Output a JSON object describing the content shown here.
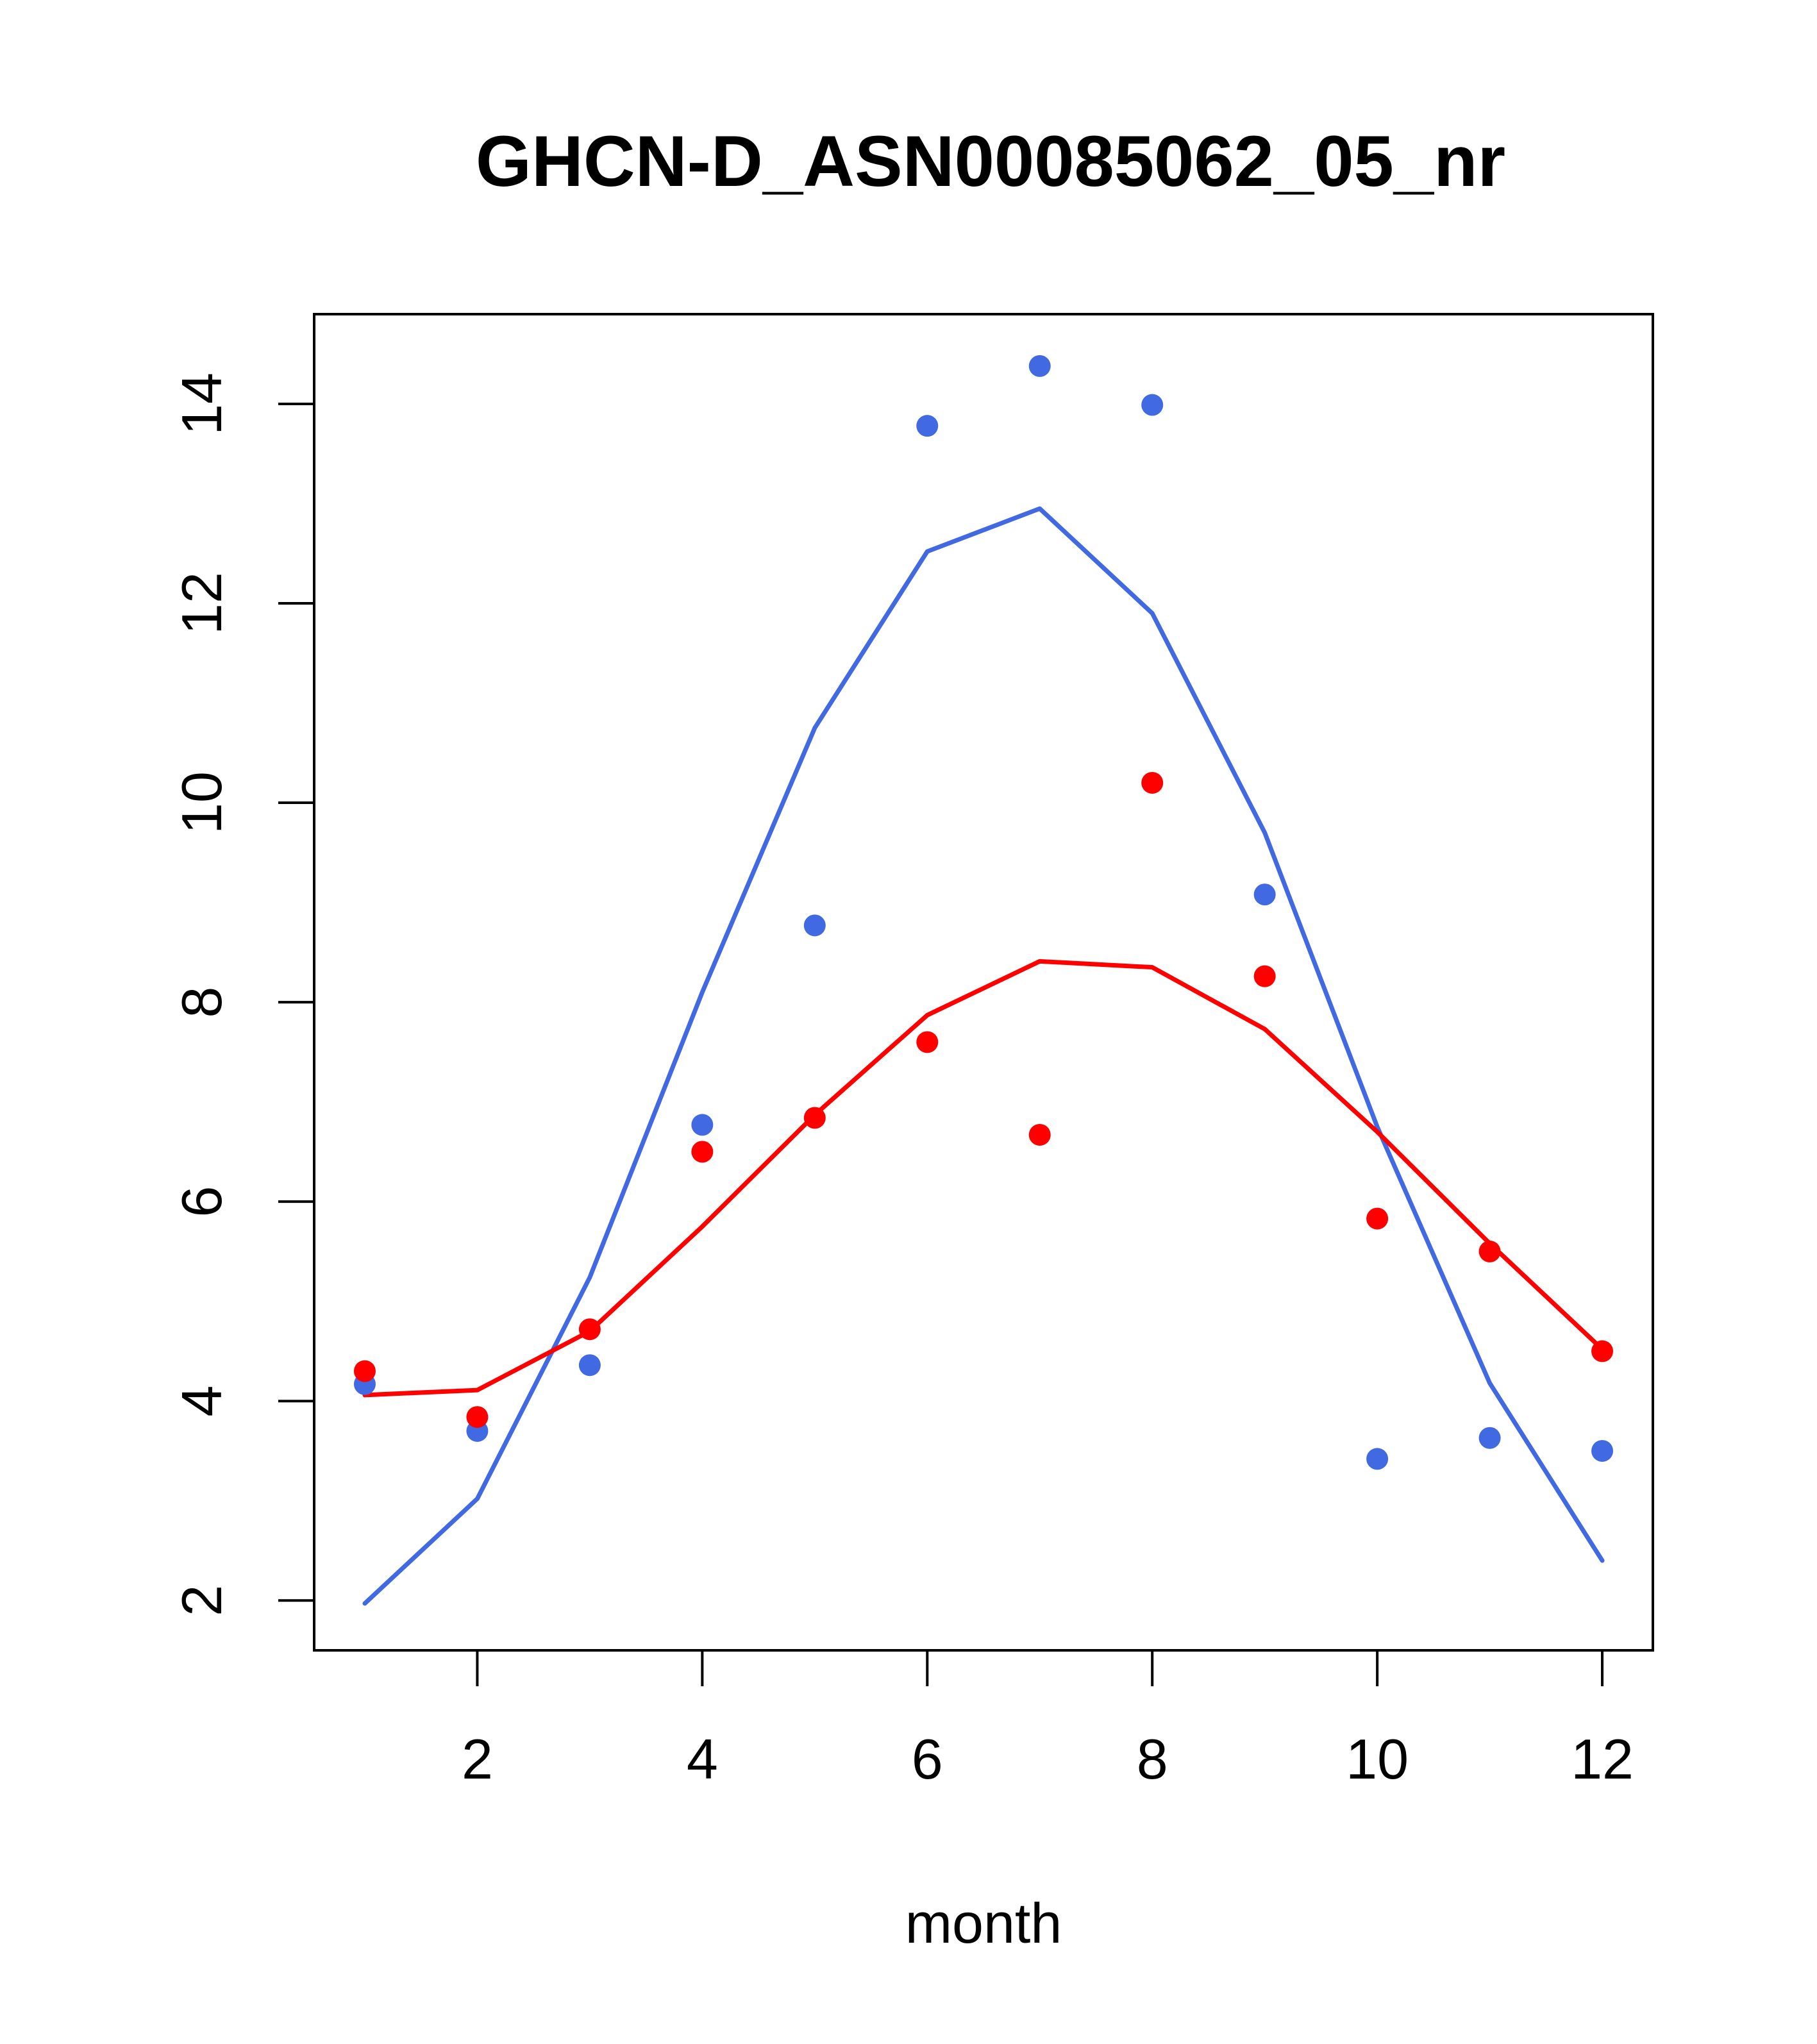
{
  "chart_data": {
    "type": "scatter",
    "title": "GHCN-D_ASN00085062_05_nr",
    "xlabel": "month",
    "ylabel": "",
    "xlim": [
      0.55,
      12.45
    ],
    "ylim": [
      1.5,
      14.9
    ],
    "x_ticks": [
      2,
      4,
      6,
      8,
      10,
      12
    ],
    "y_ticks": [
      2,
      4,
      6,
      8,
      10,
      12,
      14
    ],
    "grid": false,
    "legend": "none",
    "x": [
      1,
      2,
      3,
      4,
      5,
      6,
      7,
      8,
      9,
      10,
      11,
      12
    ],
    "series": [
      {
        "kind": "points",
        "color": "#4169e1",
        "values": [
          4.17,
          3.7,
          4.36,
          6.77,
          8.77,
          13.78,
          14.38,
          13.99,
          9.08,
          3.42,
          3.63,
          3.5
        ]
      },
      {
        "kind": "points",
        "color": "#ff0000",
        "values": [
          4.3,
          3.84,
          4.72,
          6.5,
          6.84,
          7.6,
          6.67,
          10.2,
          8.26,
          5.83,
          5.5,
          4.5
        ]
      },
      {
        "kind": "line",
        "color": "#4169e1",
        "values": [
          1.97,
          3.02,
          5.24,
          8.1,
          10.75,
          12.52,
          12.95,
          11.9,
          9.7,
          6.75,
          4.18,
          2.4
        ]
      },
      {
        "kind": "line",
        "color": "#ff0000",
        "values": [
          4.06,
          4.11,
          4.7,
          5.75,
          6.87,
          7.87,
          8.41,
          8.35,
          7.73,
          6.7,
          5.58,
          4.52
        ]
      }
    ]
  }
}
